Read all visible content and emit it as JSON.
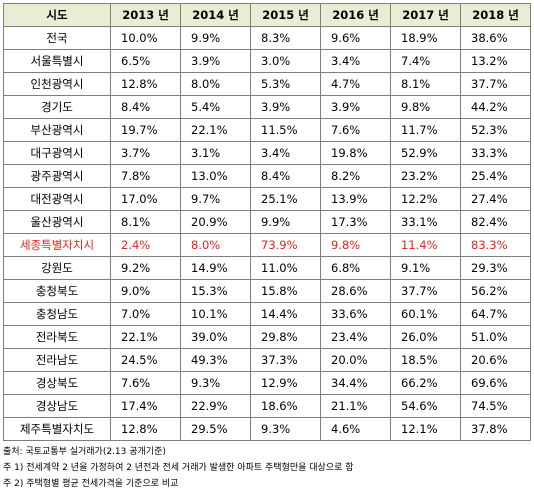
{
  "table": {
    "headers": [
      "시도",
      "2013 년",
      "2014 년",
      "2015 년",
      "2016 년",
      "2017 년",
      "2018 년"
    ],
    "highlight_color": "#e8231c",
    "header_bg": "#e8edd4",
    "rows": [
      {
        "region": "전국",
        "values": [
          "10.0%",
          "9.9%",
          "8.3%",
          "9.6%",
          "18.9%",
          "38.6%"
        ],
        "highlight": false
      },
      {
        "region": "서울특별시",
        "values": [
          "6.5%",
          "3.9%",
          "3.0%",
          "3.4%",
          "7.4%",
          "13.2%"
        ],
        "highlight": false
      },
      {
        "region": "인천광역시",
        "values": [
          "12.8%",
          "8.0%",
          "5.3%",
          "4.7%",
          "8.1%",
          "37.7%"
        ],
        "highlight": false
      },
      {
        "region": "경기도",
        "values": [
          "8.4%",
          "5.4%",
          "3.9%",
          "3.9%",
          "9.8%",
          "44.2%"
        ],
        "highlight": false
      },
      {
        "region": "부산광역시",
        "values": [
          "19.7%",
          "22.1%",
          "11.5%",
          "7.6%",
          "11.7%",
          "52.3%"
        ],
        "highlight": false
      },
      {
        "region": "대구광역시",
        "values": [
          "3.7%",
          "3.1%",
          "3.4%",
          "19.8%",
          "52.9%",
          "33.3%"
        ],
        "highlight": false
      },
      {
        "region": "광주광역시",
        "values": [
          "7.8%",
          "13.0%",
          "8.4%",
          "8.2%",
          "23.2%",
          "25.4%"
        ],
        "highlight": false
      },
      {
        "region": "대전광역시",
        "values": [
          "17.0%",
          "9.7%",
          "25.1%",
          "13.9%",
          "12.2%",
          "27.4%"
        ],
        "highlight": false
      },
      {
        "region": "울산광역시",
        "values": [
          "8.1%",
          "20.9%",
          "9.9%",
          "17.3%",
          "33.1%",
          "82.4%"
        ],
        "highlight": false
      },
      {
        "region": "세종특별자치시",
        "values": [
          "2.4%",
          "8.0%",
          "73.9%",
          "9.8%",
          "11.4%",
          "83.3%"
        ],
        "highlight": true
      },
      {
        "region": "강원도",
        "values": [
          "9.2%",
          "14.9%",
          "11.0%",
          "6.8%",
          "9.1%",
          "29.3%"
        ],
        "highlight": false
      },
      {
        "region": "충청북도",
        "values": [
          "9.0%",
          "15.3%",
          "15.8%",
          "28.6%",
          "37.7%",
          "56.2%"
        ],
        "highlight": false
      },
      {
        "region": "충청남도",
        "values": [
          "7.0%",
          "10.1%",
          "14.4%",
          "33.6%",
          "60.1%",
          "64.7%"
        ],
        "highlight": false
      },
      {
        "region": "전라북도",
        "values": [
          "22.1%",
          "39.0%",
          "29.8%",
          "23.4%",
          "26.0%",
          "51.0%"
        ],
        "highlight": false
      },
      {
        "region": "전라남도",
        "values": [
          "24.5%",
          "49.3%",
          "37.3%",
          "20.0%",
          "18.5%",
          "20.6%"
        ],
        "highlight": false
      },
      {
        "region": "경상북도",
        "values": [
          "7.6%",
          "9.3%",
          "12.9%",
          "34.4%",
          "66.2%",
          "69.6%"
        ],
        "highlight": false
      },
      {
        "region": "경상남도",
        "values": [
          "17.4%",
          "22.9%",
          "18.6%",
          "21.1%",
          "54.6%",
          "74.5%"
        ],
        "highlight": false
      },
      {
        "region": "제주특별자치도",
        "values": [
          "12.8%",
          "29.5%",
          "9.3%",
          "4.6%",
          "12.1%",
          "37.8%"
        ],
        "highlight": false
      }
    ]
  },
  "notes": {
    "source": "출처: 국토교통부 실거래가(2.13 공개기준)",
    "note1": "주 1) 전세계약 2 년을 가정하여 2 년전과 전세 거래가 발생한 아파트 주택형만을 대상으로 함",
    "note2": "주 2) 주택형별 평균 전세가격을 기준으로 비교"
  }
}
